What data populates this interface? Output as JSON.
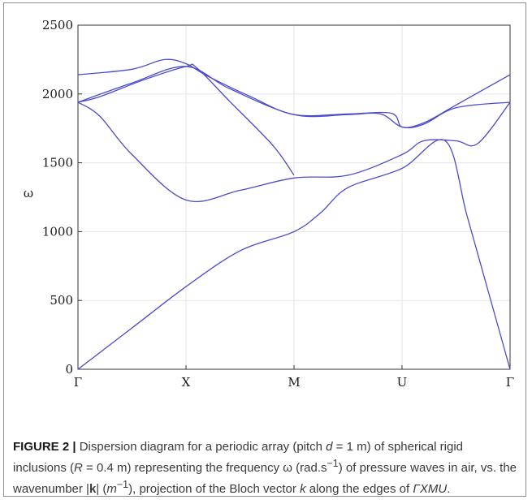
{
  "chart_data": {
    "type": "line",
    "title": "",
    "xlabel": "",
    "ylabel": "ω",
    "ylim": [
      0,
      2500
    ],
    "yticks": [
      0,
      500,
      1000,
      1500,
      2000,
      2500
    ],
    "xtick_labels": [
      "Γ",
      "X",
      "M",
      "U",
      "Γ"
    ],
    "grid": true,
    "line_color": "#4a4acd",
    "series": [
      {
        "x": [
          0,
          0.5,
          1.0,
          1.5,
          2.0,
          2.25,
          2.5,
          3.0,
          3.4,
          3.6,
          3.8,
          4.0
        ],
        "y": [
          0,
          300,
          600,
          860,
          1000,
          1140,
          1320,
          1460,
          1660,
          1120,
          560,
          0
        ]
      },
      {
        "x": [
          0,
          0.2,
          0.5,
          1.0,
          1.5,
          2.0,
          2.5,
          3.0,
          3.2,
          3.5,
          3.7,
          4.0
        ],
        "y": [
          1940,
          1840,
          1560,
          1230,
          1300,
          1390,
          1410,
          1560,
          1660,
          1660,
          1640,
          1940
        ]
      },
      {
        "x": [
          0,
          0.2,
          0.6,
          1.0,
          1.1,
          1.4,
          1.8,
          2.0
        ],
        "y": [
          1940,
          1980,
          2100,
          2200,
          2190,
          1950,
          1630,
          1410
        ]
      },
      {
        "x": [
          0,
          0.5,
          1.0,
          1.4,
          2.0,
          2.5,
          2.8,
          3.0,
          3.2,
          3.5,
          4.0
        ],
        "y": [
          1940,
          2080,
          2200,
          2040,
          1850,
          1850,
          1855,
          1760,
          1780,
          1900,
          1940
        ]
      },
      {
        "x": [
          0,
          0.5,
          0.8,
          1.0,
          1.2,
          1.6,
          2.0,
          2.5,
          2.9,
          3.0,
          3.2,
          3.5,
          4.0
        ],
        "y": [
          2140,
          2180,
          2250,
          2220,
          2130,
          1980,
          1850,
          1855,
          1860,
          1760,
          1790,
          1920,
          2140
        ]
      }
    ]
  },
  "caption": {
    "label": "FIGURE 2 |",
    "t1": " Dispersion diagram for a periodic array (pitch ",
    "d": "d",
    "t2": " = 1 m) of spherical rigid inclusions (",
    "R": "R",
    "t3": " = 0.4 m) representing the frequency ω (rad.s",
    "sup1": "−1",
    "t4": ") of pressure waves in air, vs. the wavenumber |",
    "k": "k",
    "t5": "| (",
    "m": "m",
    "sup2": "−1",
    "t6": "), projection of the Bloch vector ",
    "kv": "k",
    "t7": " along the edges of ",
    "path": "ΓXMU",
    "t8": "."
  }
}
